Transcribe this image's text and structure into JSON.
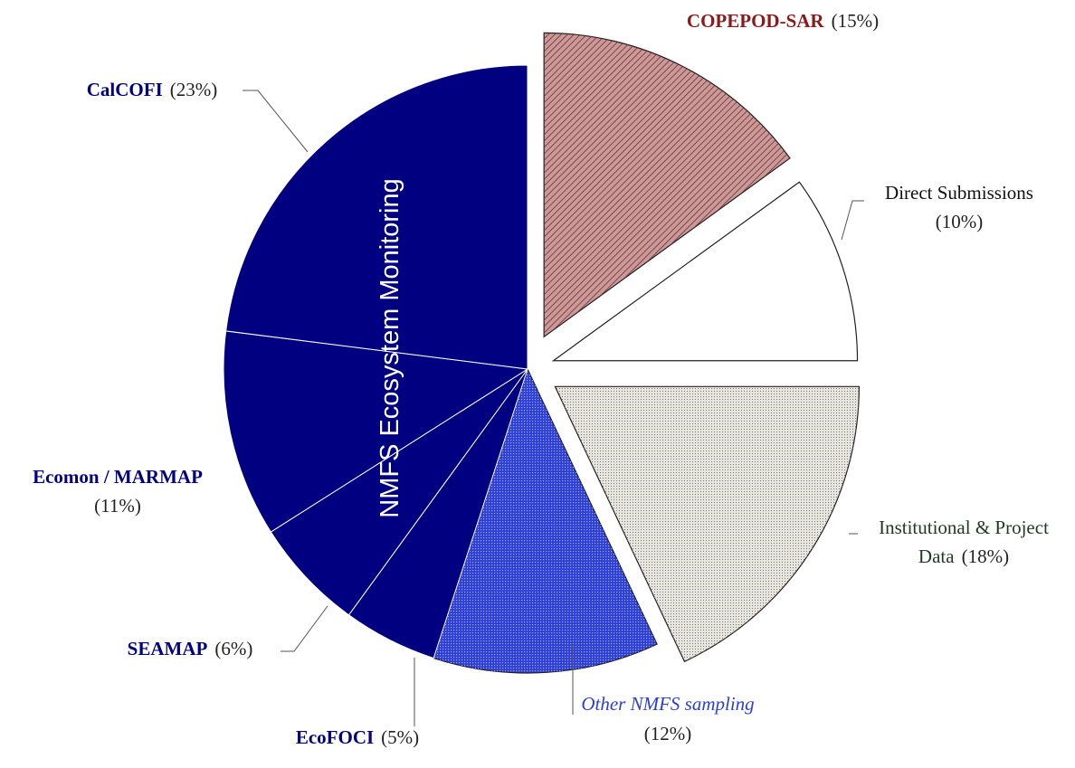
{
  "chart_data": {
    "type": "pie",
    "annotation": "NMFS Ecosystem Monitoring",
    "categories": [
      "COPEPOD-SAR",
      "Direct Submissions",
      "Institutional & Project Data",
      "Other NMFS sampling",
      "EcoFOCI",
      "SEAMAP",
      "Ecomon / MARMAP",
      "CalCOFI"
    ],
    "values": [
      15,
      10,
      18,
      12,
      5,
      6,
      11,
      23
    ],
    "value_labels": [
      "(15%)",
      "(10%)",
      "(18%)",
      "(12%)",
      "(5%)",
      "(6%)",
      "(11%)",
      "(23%)"
    ],
    "colors": [
      "#c99a9a",
      "#ffffff",
      "#e6e6de",
      "#2e3fd6",
      "#000080",
      "#000080",
      "#000080",
      "#000080"
    ]
  }
}
